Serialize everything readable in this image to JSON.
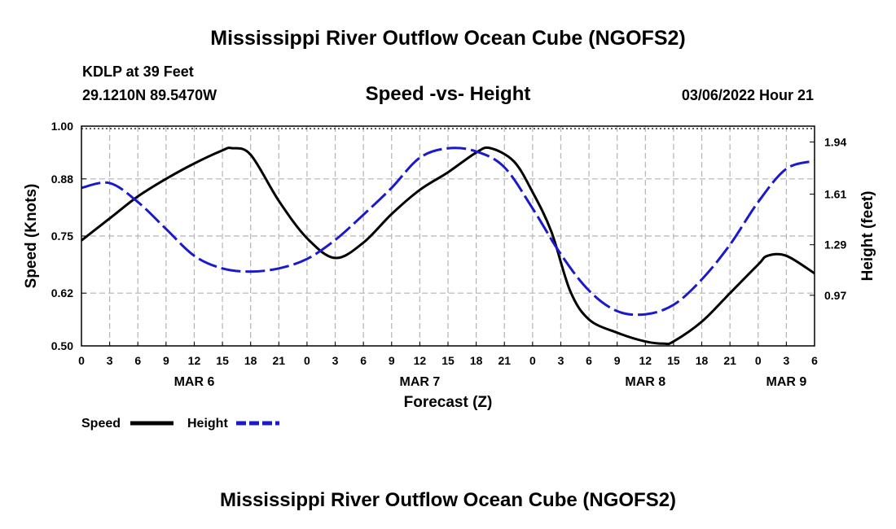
{
  "header": {
    "title": "Mississippi River Outflow Ocean Cube (NGOFS2)",
    "station": "KDLP at 39 Feet",
    "coords": "29.1210N  89.5470W",
    "subtitle": "Speed -vs- Height",
    "datetime": "03/06/2022 Hour 21"
  },
  "footer": {
    "title": "Mississippi River Outflow Ocean Cube (NGOFS2)"
  },
  "chart_data": {
    "type": "line",
    "title": "Speed -vs- Height",
    "xlabel": "Forecast (Z)",
    "ylabel": "Speed (Knots)",
    "y2label": "Height (feet)",
    "x_range_hours": [
      0,
      78
    ],
    "x_tick_labels": [
      "0",
      "3",
      "6",
      "9",
      "12",
      "15",
      "18",
      "21",
      "0",
      "3",
      "6",
      "9",
      "12",
      "15",
      "18",
      "21",
      "0",
      "3",
      "6",
      "9",
      "12",
      "15",
      "18",
      "21",
      "0",
      "3",
      "6"
    ],
    "date_labels": [
      {
        "label": "MAR 6",
        "hour": 12
      },
      {
        "label": "MAR 7",
        "hour": 36
      },
      {
        "label": "MAR 8",
        "hour": 60
      },
      {
        "label": "MAR 9",
        "hour": 75
      }
    ],
    "ylim": [
      0.5,
      1.0
    ],
    "y_ticks": [
      "0.50",
      "0.62",
      "0.75",
      "0.88",
      "1.00"
    ],
    "y2lim": [
      0.65,
      2.04
    ],
    "y2_ticks": [
      {
        "label": "0.97",
        "value": 0.97
      },
      {
        "label": "1.29",
        "value": 1.29
      },
      {
        "label": "1.61",
        "value": 1.61
      },
      {
        "label": "1.94",
        "value": 1.94
      }
    ],
    "grid": true,
    "legend_position": "bottom-left",
    "series": [
      {
        "name": "Speed",
        "axis": "left",
        "color": "#000000",
        "style": "solid",
        "x": [
          0,
          3,
          6,
          9,
          12,
          15,
          16,
          18,
          21,
          24,
          27,
          30,
          33,
          36,
          39,
          42,
          43.5,
          46,
          48,
          50,
          52,
          54,
          57,
          60,
          62,
          63,
          66,
          69,
          72,
          73,
          75,
          78
        ],
        "y": [
          0.74,
          0.79,
          0.84,
          0.88,
          0.915,
          0.945,
          0.95,
          0.935,
          0.83,
          0.745,
          0.7,
          0.735,
          0.8,
          0.855,
          0.895,
          0.94,
          0.95,
          0.92,
          0.85,
          0.76,
          0.625,
          0.56,
          0.53,
          0.51,
          0.505,
          0.51,
          0.555,
          0.62,
          0.685,
          0.705,
          0.705,
          0.665
        ]
      },
      {
        "name": "Height",
        "axis": "right",
        "color": "#1a1acc",
        "style": "dashed",
        "x": [
          0,
          3,
          6,
          9,
          12,
          15,
          18,
          21,
          24,
          27,
          30,
          33,
          36,
          39,
          42,
          45,
          48,
          51,
          54,
          57,
          60,
          63,
          66,
          69,
          72,
          75,
          78
        ],
        "y": [
          1.65,
          1.68,
          1.56,
          1.39,
          1.22,
          1.14,
          1.12,
          1.14,
          1.2,
          1.32,
          1.48,
          1.65,
          1.84,
          1.9,
          1.88,
          1.78,
          1.52,
          1.23,
          1.0,
          0.87,
          0.85,
          0.91,
          1.07,
          1.29,
          1.56,
          1.77,
          1.82
        ]
      }
    ]
  }
}
